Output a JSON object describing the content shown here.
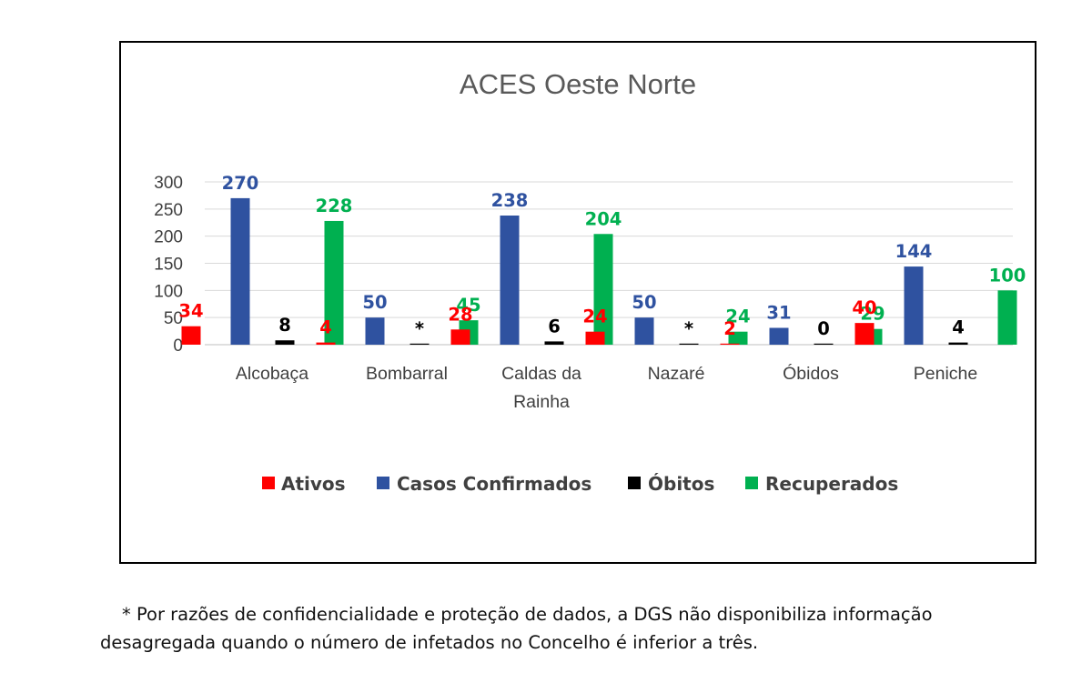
{
  "chart_data": {
    "type": "bar",
    "title": "ACES Oeste Norte",
    "categories": [
      [
        "Alcobaça"
      ],
      [
        "Bombarral"
      ],
      [
        "Caldas da",
        "Rainha"
      ],
      [
        "Nazaré"
      ],
      [
        "Óbidos"
      ],
      [
        "Peniche"
      ]
    ],
    "series": [
      {
        "name": "Ativos",
        "color": "#ff0000",
        "values": [
          34,
          4,
          28,
          24,
          2,
          40
        ],
        "labels": [
          "34",
          "4",
          "28",
          "24",
          "2",
          "40"
        ]
      },
      {
        "name": "Casos Confirmados",
        "color": "#2f52a0",
        "values": [
          270,
          50,
          238,
          50,
          31,
          144
        ],
        "labels": [
          "270",
          "50",
          "238",
          "50",
          "31",
          "144"
        ]
      },
      {
        "name": "Óbitos",
        "color": "#000000",
        "values": [
          8,
          1,
          6,
          1,
          0,
          4
        ],
        "labels": [
          "8",
          "*",
          "6",
          "*",
          "0",
          "4"
        ]
      },
      {
        "name": "Recuperados",
        "color": "#00b050",
        "values": [
          228,
          45,
          204,
          24,
          29,
          100
        ],
        "labels": [
          "228",
          "45",
          "204",
          "24",
          "29",
          "100"
        ]
      }
    ],
    "ylim": [
      0,
      300
    ],
    "yticks": [
      "0",
      "50",
      "100",
      "150",
      "200",
      "250",
      "300"
    ],
    "grid": true,
    "legend": "bottom"
  },
  "footnote": {
    "line1": "* Por razões de confidencialidade e proteção de dados, a DGS não disponibiliza informação",
    "line2": "desagregada quando o número de infetados no Concelho é inferior a três."
  }
}
